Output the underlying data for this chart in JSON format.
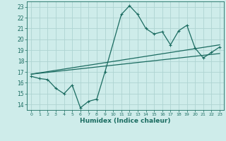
{
  "title": "",
  "xlabel": "Humidex (Indice chaleur)",
  "background_color": "#ceecea",
  "grid_color": "#aed4d2",
  "line_color": "#1a6b60",
  "xlim": [
    -0.5,
    23.5
  ],
  "ylim": [
    13.5,
    23.5
  ],
  "xticks": [
    0,
    1,
    2,
    3,
    4,
    5,
    6,
    7,
    8,
    9,
    10,
    11,
    12,
    13,
    14,
    15,
    16,
    17,
    18,
    19,
    20,
    21,
    22,
    23
  ],
  "yticks": [
    14,
    15,
    16,
    17,
    18,
    19,
    20,
    21,
    22,
    23
  ],
  "line1_x": [
    0,
    1,
    2,
    3,
    4,
    5,
    6,
    7,
    8,
    9,
    11,
    12,
    13,
    14,
    15,
    16,
    17,
    18,
    19,
    20,
    21,
    22,
    23
  ],
  "line1_y": [
    16.6,
    16.4,
    16.3,
    15.5,
    15.0,
    15.8,
    13.7,
    14.3,
    14.5,
    17.0,
    22.3,
    23.1,
    22.3,
    21.0,
    20.5,
    20.7,
    19.5,
    20.8,
    21.3,
    19.2,
    18.3,
    18.8,
    19.3
  ],
  "line2_x": [
    0,
    23
  ],
  "line2_y": [
    16.8,
    19.5
  ],
  "line3_x": [
    0,
    23
  ],
  "line3_y": [
    16.8,
    18.7
  ]
}
